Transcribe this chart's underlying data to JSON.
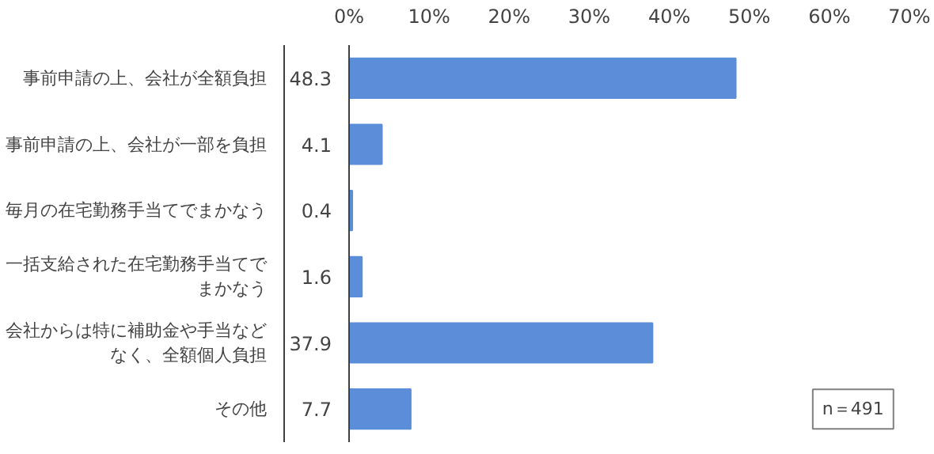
{
  "chart_data": {
    "type": "bar",
    "orientation": "horizontal",
    "categories": [
      "事前申請の上、会社が全額負担",
      "事前申請の上、会社が一部を負担",
      "毎月の在宅勤務手当てでまかなう",
      "一括支給された在宅勤務手当てでまかなう",
      "会社からは特に補助金や手当などなく、全額個人負担",
      "その他"
    ],
    "values": [
      48.3,
      4.1,
      0.4,
      1.6,
      37.9,
      7.7
    ],
    "color": "#5b8dd9",
    "xlim": [
      0,
      70
    ],
    "xticks": [
      {
        "value": 0,
        "label": "0%"
      },
      {
        "value": 10,
        "label": "10%"
      },
      {
        "value": 20,
        "label": "20%"
      },
      {
        "value": 30,
        "label": "30%"
      },
      {
        "value": 40,
        "label": "40%"
      },
      {
        "value": 50,
        "label": "50%"
      },
      {
        "value": 60,
        "label": "60%"
      },
      {
        "value": 70,
        "label": "70%"
      }
    ],
    "data_labels": true,
    "grid": false,
    "annotations": [
      "n＝491"
    ]
  }
}
